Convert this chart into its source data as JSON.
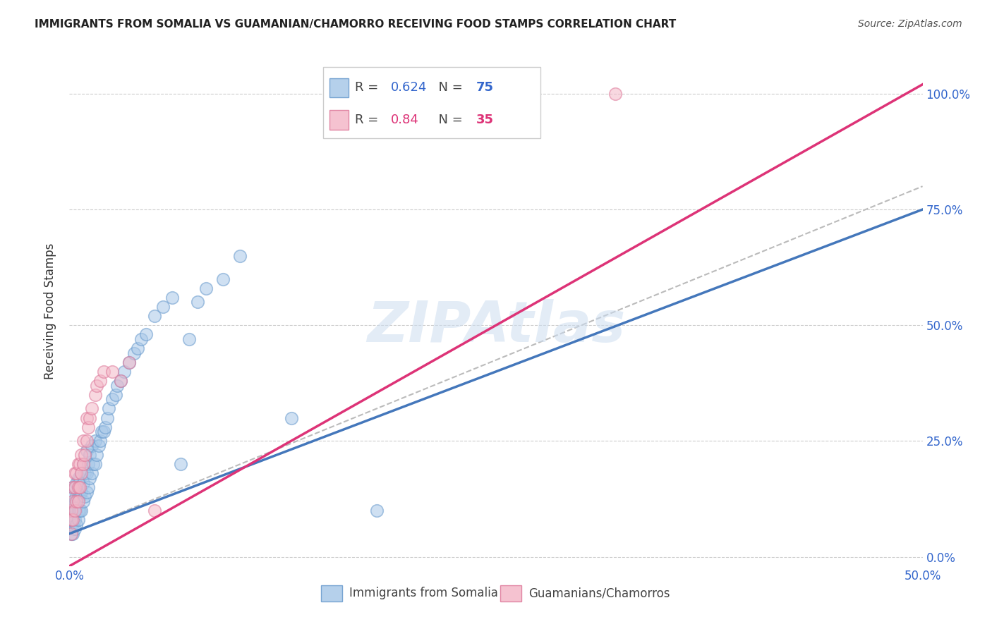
{
  "title": "IMMIGRANTS FROM SOMALIA VS GUAMANIAN/CHAMORRO RECEIVING FOOD STAMPS CORRELATION CHART",
  "source": "Source: ZipAtlas.com",
  "ylabel": "Receiving Food Stamps",
  "ytick_labels": [
    "0.0%",
    "25.0%",
    "50.0%",
    "75.0%",
    "100.0%"
  ],
  "ytick_values": [
    0.0,
    0.25,
    0.5,
    0.75,
    1.0
  ],
  "xlim": [
    0.0,
    0.5
  ],
  "ylim": [
    -0.02,
    1.08
  ],
  "somalia_color": "#a8c8e8",
  "somalia_color_edge": "#6699cc",
  "guam_color": "#f4b8c8",
  "guam_color_edge": "#dd7799",
  "somalia_R": 0.624,
  "somalia_N": 75,
  "guam_R": 0.84,
  "guam_N": 35,
  "trendline_somalia_color": "#4477bb",
  "trendline_guam_color": "#dd3377",
  "dashed_line_color": "#bbbbbb",
  "legend_label_somalia": "Immigrants from Somalia",
  "legend_label_guam": "Guamanians/Chamorros",
  "watermark": "ZIPAtlas",
  "background_color": "#ffffff",
  "somalia_x": [
    0.001,
    0.001,
    0.001,
    0.001,
    0.002,
    0.002,
    0.002,
    0.002,
    0.002,
    0.002,
    0.003,
    0.003,
    0.003,
    0.003,
    0.003,
    0.004,
    0.004,
    0.004,
    0.004,
    0.005,
    0.005,
    0.005,
    0.005,
    0.006,
    0.006,
    0.006,
    0.007,
    0.007,
    0.007,
    0.008,
    0.008,
    0.008,
    0.009,
    0.009,
    0.01,
    0.01,
    0.01,
    0.011,
    0.011,
    0.012,
    0.012,
    0.013,
    0.013,
    0.014,
    0.015,
    0.015,
    0.016,
    0.017,
    0.018,
    0.019,
    0.02,
    0.021,
    0.022,
    0.023,
    0.025,
    0.027,
    0.028,
    0.03,
    0.032,
    0.035,
    0.038,
    0.04,
    0.042,
    0.045,
    0.05,
    0.055,
    0.06,
    0.065,
    0.07,
    0.075,
    0.08,
    0.09,
    0.1,
    0.13,
    0.18
  ],
  "somalia_y": [
    0.05,
    0.07,
    0.08,
    0.1,
    0.05,
    0.07,
    0.09,
    0.11,
    0.13,
    0.15,
    0.06,
    0.08,
    0.1,
    0.12,
    0.15,
    0.07,
    0.1,
    0.13,
    0.16,
    0.08,
    0.1,
    0.13,
    0.17,
    0.1,
    0.13,
    0.17,
    0.1,
    0.14,
    0.18,
    0.12,
    0.16,
    0.2,
    0.13,
    0.18,
    0.14,
    0.18,
    0.23,
    0.15,
    0.2,
    0.17,
    0.22,
    0.18,
    0.24,
    0.2,
    0.2,
    0.25,
    0.22,
    0.24,
    0.25,
    0.27,
    0.27,
    0.28,
    0.3,
    0.32,
    0.34,
    0.35,
    0.37,
    0.38,
    0.4,
    0.42,
    0.44,
    0.45,
    0.47,
    0.48,
    0.52,
    0.54,
    0.56,
    0.2,
    0.47,
    0.55,
    0.58,
    0.6,
    0.65,
    0.3,
    0.1
  ],
  "guam_x": [
    0.001,
    0.001,
    0.001,
    0.002,
    0.002,
    0.002,
    0.003,
    0.003,
    0.003,
    0.004,
    0.004,
    0.005,
    0.005,
    0.005,
    0.006,
    0.006,
    0.007,
    0.007,
    0.008,
    0.008,
    0.009,
    0.01,
    0.01,
    0.011,
    0.012,
    0.013,
    0.015,
    0.016,
    0.018,
    0.02,
    0.025,
    0.03,
    0.035,
    0.05,
    0.32
  ],
  "guam_y": [
    0.05,
    0.08,
    0.1,
    0.08,
    0.12,
    0.15,
    0.1,
    0.15,
    0.18,
    0.12,
    0.18,
    0.12,
    0.15,
    0.2,
    0.15,
    0.2,
    0.18,
    0.22,
    0.2,
    0.25,
    0.22,
    0.25,
    0.3,
    0.28,
    0.3,
    0.32,
    0.35,
    0.37,
    0.38,
    0.4,
    0.4,
    0.38,
    0.42,
    0.1,
    1.0
  ],
  "somalia_trendline_x": [
    0.0,
    0.5
  ],
  "somalia_trendline_y": [
    0.05,
    0.75
  ],
  "guam_trendline_x": [
    0.0,
    0.5
  ],
  "guam_trendline_y": [
    -0.02,
    1.02
  ],
  "dashed_line_x": [
    0.0,
    0.5
  ],
  "dashed_line_y": [
    0.05,
    0.8
  ]
}
